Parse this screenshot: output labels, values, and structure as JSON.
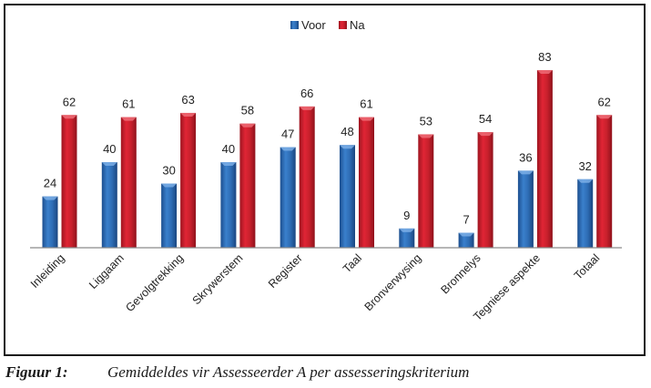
{
  "chart_data": {
    "type": "bar",
    "title": "",
    "xlabel": "",
    "ylabel": "",
    "ylim": [
      0,
      90
    ],
    "grid": false,
    "legend": {
      "position": "top-center"
    },
    "categories": [
      "Inleiding",
      "Liggaam",
      "Gevolgtrekking",
      "Skrywerstem",
      "Register",
      "Taal",
      "Bronverwysing",
      "Bronnelys",
      "Tegniese aspekte",
      "Totaal"
    ],
    "series": [
      {
        "name": "Voor",
        "color": "#2e6db5",
        "values": [
          24,
          40,
          30,
          40,
          47,
          48,
          9,
          7,
          36,
          32
        ]
      },
      {
        "name": "Na",
        "color": "#c8202c",
        "values": [
          62,
          61,
          63,
          58,
          66,
          61,
          53,
          54,
          83,
          62
        ]
      }
    ],
    "data_labels": true
  },
  "caption": {
    "label": "Figuur 1:",
    "text": "Gemiddeldes vir Assesseerder A per assesseringskriterium"
  }
}
